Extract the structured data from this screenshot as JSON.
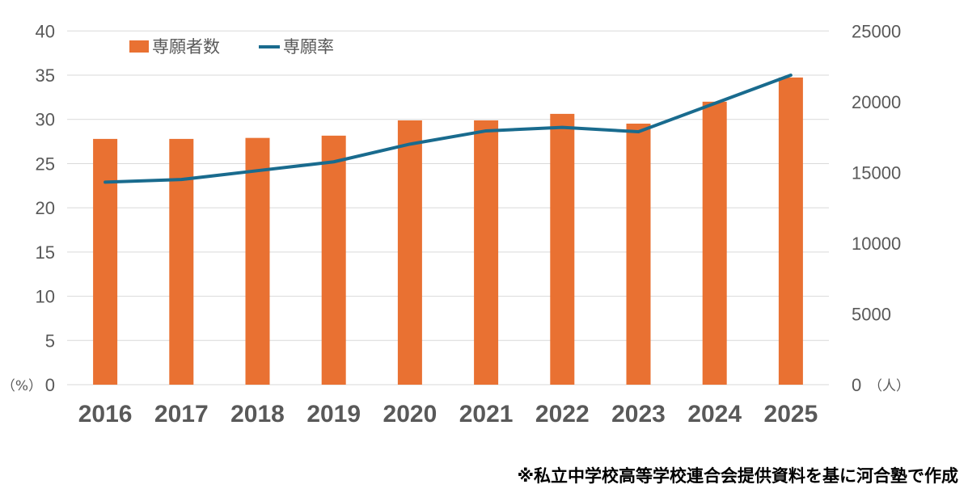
{
  "chart_data": {
    "type": "bar+line",
    "categories": [
      "2016",
      "2017",
      "2018",
      "2019",
      "2020",
      "2021",
      "2022",
      "2023",
      "2024",
      "2025"
    ],
    "series": [
      {
        "name": "専願者数",
        "type": "bar",
        "axis": "right",
        "color": "#E97132",
        "values": [
          17370,
          17370,
          17440,
          17600,
          18680,
          18680,
          19140,
          18450,
          20000,
          21710
        ]
      },
      {
        "name": "専願率",
        "type": "line",
        "axis": "left",
        "color": "#196B8E",
        "values": [
          22.9,
          23.2,
          24.2,
          25.2,
          27.2,
          28.7,
          29.1,
          28.6,
          31.8,
          35.0
        ]
      }
    ],
    "y_left": {
      "label": "（%）",
      "range": [
        0,
        40
      ],
      "ticks": [
        0,
        5,
        10,
        15,
        20,
        25,
        30,
        35,
        40
      ]
    },
    "y_right": {
      "label": "（人）",
      "range": [
        0,
        25000
      ],
      "ticks": [
        0,
        5000,
        10000,
        15000,
        20000,
        25000
      ]
    },
    "grid": true,
    "legend_placement": "top-left",
    "note": "※私立中学校高等学校連合会提供資料を基に河合塾で作成"
  }
}
